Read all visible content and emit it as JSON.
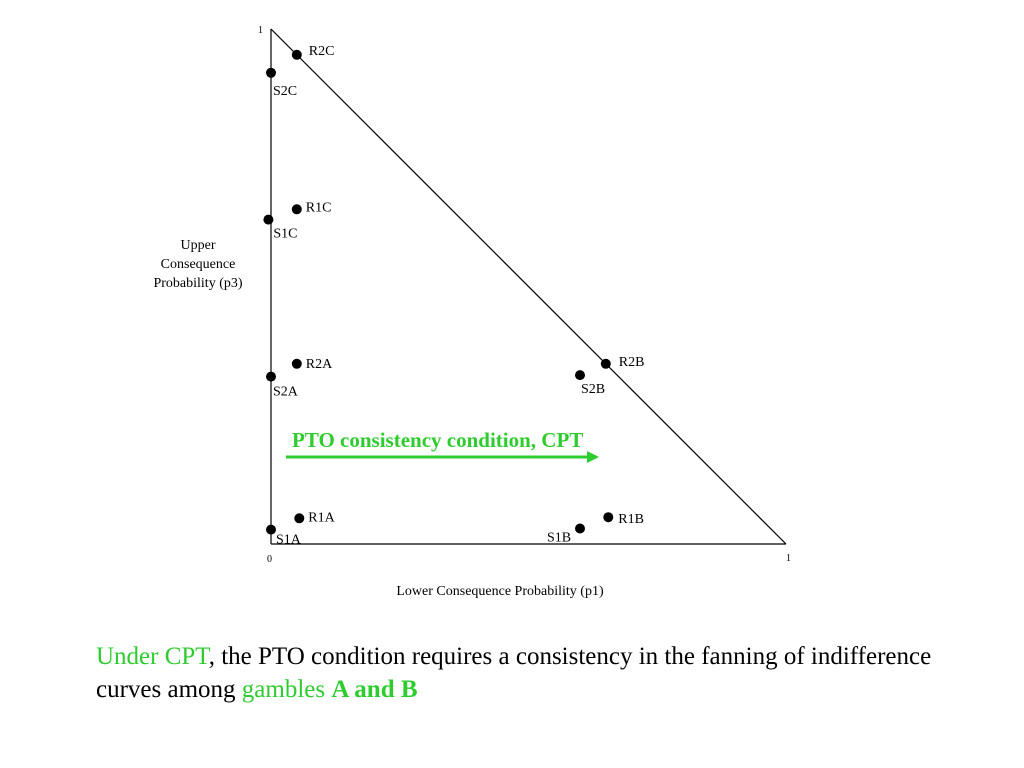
{
  "axes": {
    "y_label_lines": [
      "Upper",
      "Consequence",
      "Probability (p3)"
    ],
    "x_label": "Lower Consequence Probability  (p1)",
    "y_max_label": "1",
    "origin_label": "0",
    "x_max_label": "1"
  },
  "points": [
    {
      "id": "R2C",
      "label": "R2C",
      "p1": 0.05,
      "p3": 0.95
    },
    {
      "id": "S2C",
      "label": "S2C",
      "p1": 0.0,
      "p3": 0.915
    },
    {
      "id": "R1C",
      "label": "R1C",
      "p1": 0.05,
      "p3": 0.65
    },
    {
      "id": "S1C",
      "label": "S1C",
      "p1": -0.005,
      "p3": 0.63
    },
    {
      "id": "R2A",
      "label": "R2A",
      "p1": 0.05,
      "p3": 0.35
    },
    {
      "id": "S2A",
      "label": "S2A",
      "p1": 0.0,
      "p3": 0.325
    },
    {
      "id": "R2B",
      "label": "R2B",
      "p1": 0.65,
      "p3": 0.35
    },
    {
      "id": "S2B",
      "label": "S2B",
      "p1": 0.6,
      "p3": 0.328
    },
    {
      "id": "R1A",
      "label": "R1A",
      "p1": 0.055,
      "p3": 0.05
    },
    {
      "id": "S1A",
      "label": "S1A",
      "p1": 0.0,
      "p3": 0.028
    },
    {
      "id": "R1B",
      "label": "R1B",
      "p1": 0.655,
      "p3": 0.052
    },
    {
      "id": "S1B",
      "label": "S1B",
      "p1": 0.6,
      "p3": 0.03
    }
  ],
  "annotation": {
    "text": "PTO consistency condition, CPT",
    "color": "#2ecc2e"
  },
  "caption": {
    "part1": "Under CPT",
    "part2": ", the PTO condition requires a consistency in the fanning of indifference curves among ",
    "part3": "gambles ",
    "part4": "A and B"
  },
  "colors": {
    "accent_green": "#2ecc2e",
    "ink": "#000000"
  }
}
